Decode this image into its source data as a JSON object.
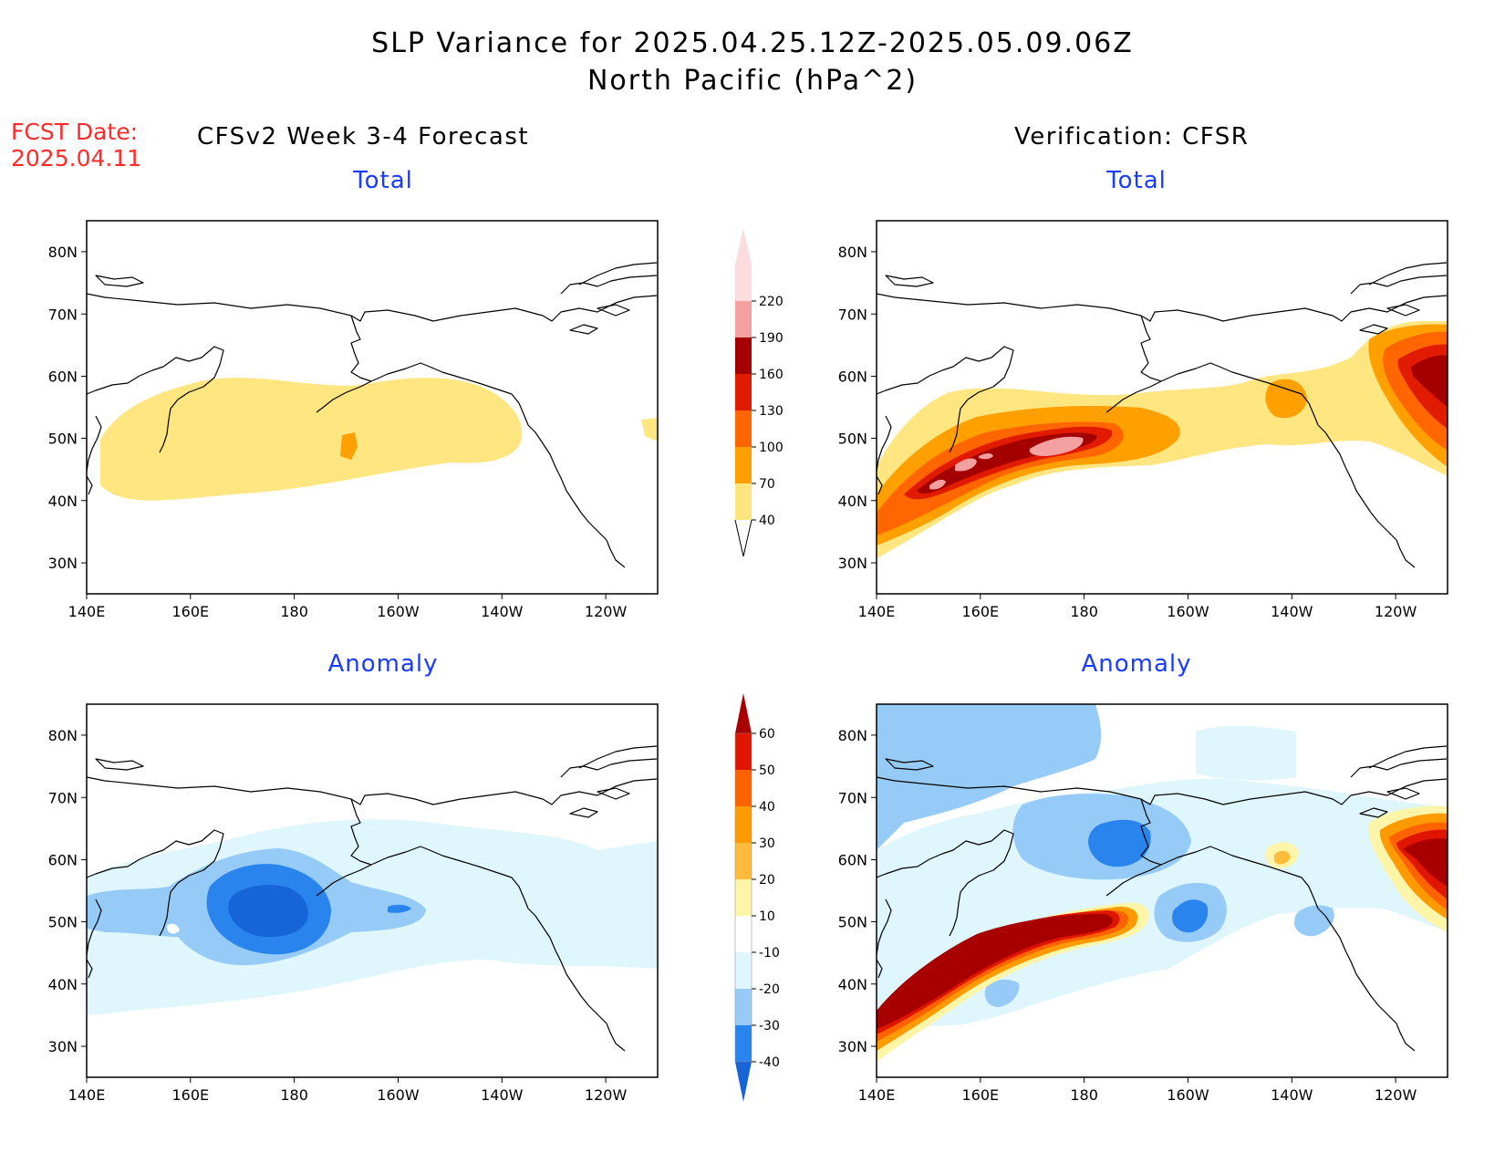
{
  "header": {
    "title_line1": "SLP Variance for 2025.04.25.12Z-2025.05.09.06Z",
    "title_line2": "North Pacific (hPa^2)",
    "fcst_label": "FCST Date:",
    "fcst_date": "2025.04.11",
    "left_column_title": "CFSv2 Week 3-4 Forecast",
    "right_column_title": "Verification: CFSR"
  },
  "panels": {
    "top_left_subtitle": "Total",
    "top_right_subtitle": "Total",
    "bottom_left_subtitle": "Anomaly",
    "bottom_right_subtitle": "Anomaly"
  },
  "map_axes": {
    "lon_ticks": [
      "140E",
      "160E",
      "180",
      "160W",
      "140W",
      "120W"
    ],
    "lat_ticks": [
      "30N",
      "40N",
      "50N",
      "60N",
      "70N",
      "80N"
    ]
  },
  "total_colorbar": {
    "levels": [
      "40",
      "70",
      "100",
      "130",
      "160",
      "190",
      "220"
    ],
    "colors": [
      "#ffe680",
      "#ffa000",
      "#ff6600",
      "#e01b00",
      "#a50000",
      "#f4a0a0",
      "#fcdcdc"
    ]
  },
  "anomaly_colorbar": {
    "levels": [
      "-40",
      "-30",
      "-20",
      "-10",
      "10",
      "20",
      "30",
      "40",
      "50",
      "60"
    ],
    "colors": [
      "#1664d8",
      "#2a84ee",
      "#96cbf7",
      "#dff6fc",
      "#ffffff",
      "#fff5a8",
      "#ffbb3a",
      "#ff9b00",
      "#ff6300",
      "#e01500",
      "#a80000"
    ]
  }
}
